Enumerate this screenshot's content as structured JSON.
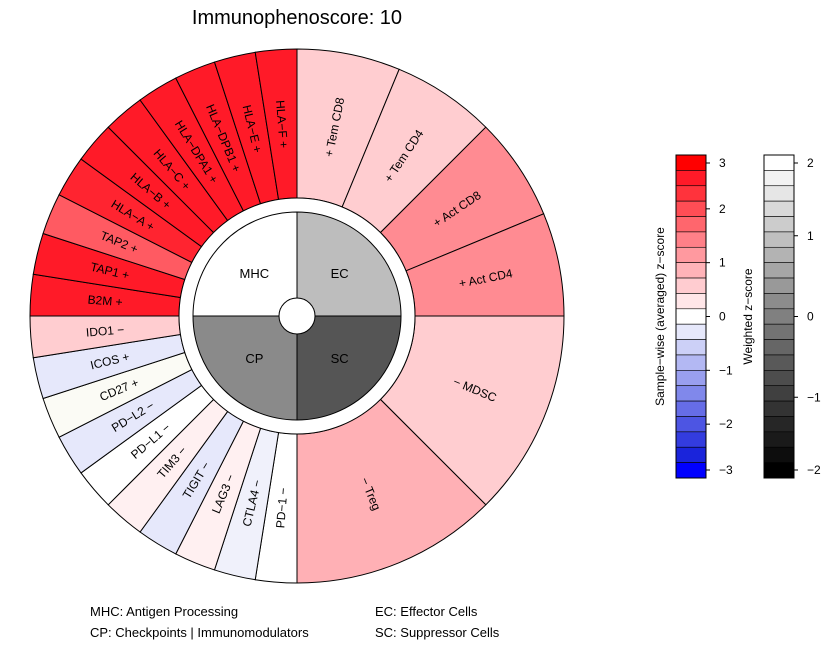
{
  "chart_data": {
    "type": "polar-bar",
    "title": "Immunophenoscore: 10",
    "quadrants": [
      {
        "key": "MHC",
        "label": "MHC",
        "color": "#ffffff"
      },
      {
        "key": "EC",
        "label": "EC",
        "color": "#bdbdbd"
      },
      {
        "key": "SC",
        "label": "SC",
        "color": "#555555"
      },
      {
        "key": "CP",
        "label": "CP",
        "color": "#8a8a8a"
      }
    ],
    "segments": [
      {
        "label": "HLA−F +",
        "group": "MHC",
        "color": "#ff1a28"
      },
      {
        "label": "HLA−E +",
        "group": "MHC",
        "color": "#ff1a28"
      },
      {
        "label": "HLA−DPB1 +",
        "group": "MHC",
        "color": "#ff1a28"
      },
      {
        "label": "HLA−DPA1 +",
        "group": "MHC",
        "color": "#ff1a28"
      },
      {
        "label": "HLA−C +",
        "group": "MHC",
        "color": "#ff1a28"
      },
      {
        "label": "HLA−B +",
        "group": "MHC",
        "color": "#ff1a28"
      },
      {
        "label": "HLA−A +",
        "group": "MHC",
        "color": "#ff2430"
      },
      {
        "label": "TAP2 +",
        "group": "MHC",
        "color": "#ff5a62"
      },
      {
        "label": "TAP1 +",
        "group": "MHC",
        "color": "#ff1a28"
      },
      {
        "label": "B2M +",
        "group": "MHC",
        "color": "#ff1a28"
      },
      {
        "label": "IDO1 −",
        "group": "CP",
        "color": "#ffcdd0"
      },
      {
        "label": "ICOS +",
        "group": "CP",
        "color": "#e6e8fb"
      },
      {
        "label": "CD27 +",
        "group": "CP",
        "color": "#fbfbf5"
      },
      {
        "label": "PD−L2 −",
        "group": "CP",
        "color": "#e6e8fb"
      },
      {
        "label": "PD−L1 −",
        "group": "CP",
        "color": "#ffffff"
      },
      {
        "label": "TIM3 −",
        "group": "CP",
        "color": "#fff0f1"
      },
      {
        "label": "TIGIT −",
        "group": "CP",
        "color": "#e6e8fb"
      },
      {
        "label": "LAG3 −",
        "group": "CP",
        "color": "#fff0f1"
      },
      {
        "label": "CTLA4 −",
        "group": "CP",
        "color": "#f0f1fb"
      },
      {
        "label": "PD−1 −",
        "group": "CP",
        "color": "#ffffff"
      },
      {
        "label": "− MDSC",
        "group": "SC",
        "color": "#ffcdd0"
      },
      {
        "label": "− Treg",
        "group": "SC",
        "color": "#ffb0b5"
      },
      {
        "label": "+ Tem CD8",
        "group": "EC",
        "color": "#ffcdd0"
      },
      {
        "label": "+ Tem CD4",
        "group": "EC",
        "color": "#ffcdd0"
      },
      {
        "label": "+ Act CD8",
        "group": "EC",
        "color": "#ff8b92"
      },
      {
        "label": "+ Act CD4",
        "group": "EC",
        "color": "#ff8b92"
      }
    ],
    "colorbar_zscore": {
      "label": "Sample−wise (averaged) z−score",
      "range": [
        -3,
        3
      ],
      "ticks": [
        3,
        2,
        1,
        0,
        -1,
        -2,
        -3
      ],
      "tick_labels": [
        "3",
        "2",
        "1",
        "0",
        "−1",
        "−2",
        "−3"
      ],
      "colors": [
        "#ff0000",
        "#ff1a28",
        "#ff333c",
        "#ff4d55",
        "#ff666d",
        "#ff8088",
        "#ff999f",
        "#ffb3b8",
        "#ffccd0",
        "#ffe6e8",
        "#ffffff",
        "#e6e8fb",
        "#ccd0f7",
        "#b3b8f3",
        "#999fef",
        "#8088eb",
        "#666de7",
        "#4d55e3",
        "#333cdf",
        "#1a24db",
        "#0000ff"
      ]
    },
    "colorbar_weighted": {
      "label": "Weighted z−score",
      "range": [
        -2,
        2
      ],
      "ticks": [
        2,
        1,
        0,
        -1,
        -2
      ],
      "tick_labels": [
        "2",
        "1",
        "0",
        "−1",
        "−2"
      ],
      "colors": [
        "#ffffff",
        "#f2f2f2",
        "#e6e6e6",
        "#d9d9d9",
        "#cccccc",
        "#bfbfbf",
        "#b3b3b3",
        "#a6a6a6",
        "#999999",
        "#8c8c8c",
        "#808080",
        "#737373",
        "#666666",
        "#595959",
        "#4d4d4d",
        "#404040",
        "#333333",
        "#262626",
        "#1a1a1a",
        "#0d0d0d",
        "#000000"
      ]
    }
  },
  "legend": {
    "mhc": "MHC: Antigen Processing",
    "cp": "CP: Checkpoints | Immunomodulators",
    "ec": "EC: Effector Cells",
    "sc": "SC: Suppressor Cells"
  }
}
